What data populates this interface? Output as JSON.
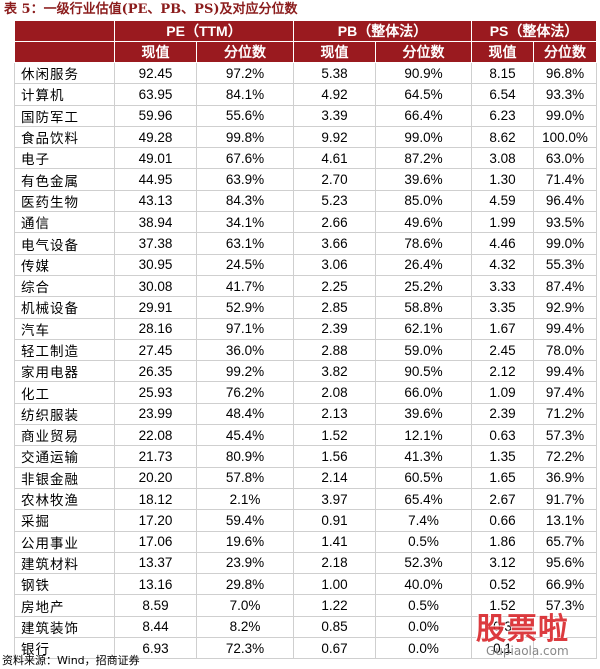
{
  "title": "表 5：一级行业估值(PE、PB、PS)及对应分位数",
  "groups": [
    "PE（TTM）",
    "PB（整体法）",
    "PS（整体法）"
  ],
  "subheaders": [
    "现值",
    "分位数",
    "现值",
    "分位数",
    "现值",
    "分位数"
  ],
  "rows": [
    [
      "休闲服务",
      "92.45",
      "97.2%",
      "5.38",
      "90.9%",
      "8.15",
      "96.8%"
    ],
    [
      "计算机",
      "63.95",
      "84.1%",
      "4.92",
      "64.5%",
      "6.54",
      "93.3%"
    ],
    [
      "国防军工",
      "59.96",
      "55.6%",
      "3.39",
      "66.4%",
      "6.23",
      "99.0%"
    ],
    [
      "食品饮料",
      "49.28",
      "99.8%",
      "9.92",
      "99.0%",
      "8.62",
      "100.0%"
    ],
    [
      "电子",
      "49.01",
      "67.6%",
      "4.61",
      "87.2%",
      "3.08",
      "63.0%"
    ],
    [
      "有色金属",
      "44.95",
      "63.9%",
      "2.70",
      "39.6%",
      "1.30",
      "71.4%"
    ],
    [
      "医药生物",
      "43.13",
      "84.3%",
      "5.23",
      "85.0%",
      "4.59",
      "96.4%"
    ],
    [
      "通信",
      "38.94",
      "34.1%",
      "2.66",
      "49.6%",
      "1.99",
      "93.5%"
    ],
    [
      "电气设备",
      "37.38",
      "63.1%",
      "3.66",
      "78.6%",
      "4.46",
      "99.0%"
    ],
    [
      "传媒",
      "30.95",
      "24.5%",
      "3.06",
      "26.4%",
      "4.32",
      "55.3%"
    ],
    [
      "综合",
      "30.08",
      "41.7%",
      "2.25",
      "25.2%",
      "3.33",
      "87.4%"
    ],
    [
      "机械设备",
      "29.91",
      "52.9%",
      "2.85",
      "58.8%",
      "3.35",
      "92.9%"
    ],
    [
      "汽车",
      "28.16",
      "97.1%",
      "2.39",
      "62.1%",
      "1.67",
      "99.4%"
    ],
    [
      "轻工制造",
      "27.45",
      "36.0%",
      "2.88",
      "59.0%",
      "2.45",
      "78.0%"
    ],
    [
      "家用电器",
      "26.35",
      "99.2%",
      "3.82",
      "90.5%",
      "2.12",
      "99.4%"
    ],
    [
      "化工",
      "25.93",
      "76.2%",
      "2.08",
      "66.0%",
      "1.09",
      "97.4%"
    ],
    [
      "纺织服装",
      "23.99",
      "48.4%",
      "2.13",
      "39.6%",
      "2.39",
      "71.2%"
    ],
    [
      "商业贸易",
      "22.08",
      "45.4%",
      "1.52",
      "12.1%",
      "0.63",
      "57.3%"
    ],
    [
      "交通运输",
      "21.73",
      "80.9%",
      "1.56",
      "41.3%",
      "1.35",
      "72.2%"
    ],
    [
      "非银金融",
      "20.20",
      "57.8%",
      "2.14",
      "60.5%",
      "1.65",
      "36.9%"
    ],
    [
      "农林牧渔",
      "18.12",
      "2.1%",
      "3.97",
      "65.4%",
      "2.67",
      "91.7%"
    ],
    [
      "采掘",
      "17.20",
      "59.4%",
      "0.91",
      "7.4%",
      "0.66",
      "13.1%"
    ],
    [
      "公用事业",
      "17.06",
      "19.6%",
      "1.41",
      "0.5%",
      "1.86",
      "65.7%"
    ],
    [
      "建筑材料",
      "13.37",
      "23.9%",
      "2.18",
      "52.3%",
      "3.12",
      "95.6%"
    ],
    [
      "钢铁",
      "13.16",
      "29.8%",
      "1.00",
      "40.0%",
      "0.52",
      "66.9%"
    ],
    [
      "房地产",
      "8.59",
      "7.0%",
      "1.22",
      "0.5%",
      "1.52",
      "57.3%"
    ],
    [
      "建筑装饰",
      "8.44",
      "8.2%",
      "0.85",
      "0.0%",
      "0.3",
      ""
    ],
    [
      "银行",
      "6.93",
      "72.3%",
      "0.67",
      "0.0%",
      "0.1",
      ""
    ]
  ],
  "source": "资料来源：Wind，招商证券",
  "watermark": {
    "text": "股票啦",
    "url": "Gupiaola.com",
    "color": "#d9262b"
  }
}
